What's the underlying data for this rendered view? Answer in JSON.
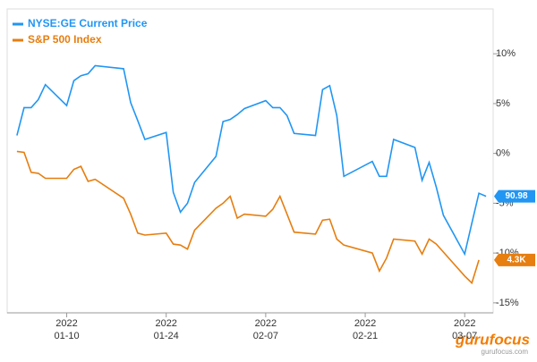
{
  "chart_data": {
    "type": "line",
    "x": [
      "2022-01-03",
      "2022-01-04",
      "2022-01-05",
      "2022-01-06",
      "2022-01-07",
      "2022-01-10",
      "2022-01-11",
      "2022-01-12",
      "2022-01-13",
      "2022-01-14",
      "2022-01-18",
      "2022-01-19",
      "2022-01-20",
      "2022-01-21",
      "2022-01-24",
      "2022-01-25",
      "2022-01-26",
      "2022-01-27",
      "2022-01-28",
      "2022-01-31",
      "2022-02-01",
      "2022-02-02",
      "2022-02-03",
      "2022-02-04",
      "2022-02-07",
      "2022-02-08",
      "2022-02-09",
      "2022-02-10",
      "2022-02-11",
      "2022-02-14",
      "2022-02-15",
      "2022-02-16",
      "2022-02-17",
      "2022-02-18",
      "2022-02-22",
      "2022-02-23",
      "2022-02-24",
      "2022-02-25",
      "2022-02-28",
      "2022-03-01",
      "2022-03-02",
      "2022-03-03",
      "2022-03-04",
      "2022-03-07",
      "2022-03-08",
      "2022-03-09",
      "2022-03-10"
    ],
    "series": [
      {
        "name": "NYSE:GE Current Price",
        "color": "#2196f3",
        "end_label": "90.98",
        "values": [
          1.8,
          4.6,
          4.6,
          5.4,
          6.9,
          4.8,
          7.3,
          7.8,
          8.0,
          8.8,
          8.5,
          5.1,
          3.3,
          1.4,
          2.1,
          -3.9,
          -5.9,
          -5.0,
          -2.9,
          -0.3,
          3.2,
          3.4,
          3.9,
          4.5,
          5.3,
          4.6,
          4.6,
          3.8,
          2.0,
          1.8,
          6.4,
          6.8,
          3.8,
          -2.3,
          -0.8,
          -2.3,
          -2.3,
          1.4,
          0.6,
          -2.7,
          -0.9,
          -3.4,
          -6.2,
          -10.1,
          -7.0,
          -4.0,
          -4.3
        ]
      },
      {
        "name": "S&P 500 Index",
        "color": "#e67e10",
        "end_label": "4.3K",
        "values": [
          0.2,
          0.1,
          -1.9,
          -2.0,
          -2.5,
          -2.5,
          -1.6,
          -1.3,
          -2.8,
          -2.6,
          -4.5,
          -6.1,
          -8.0,
          -8.2,
          -8.0,
          -9.1,
          -9.2,
          -9.6,
          -7.7,
          -5.5,
          -5.0,
          -4.3,
          -6.5,
          -6.1,
          -6.3,
          -5.6,
          -4.3,
          -6.1,
          -7.9,
          -8.1,
          -6.7,
          -6.6,
          -8.6,
          -9.2,
          -10.0,
          -11.8,
          -10.5,
          -8.6,
          -8.8,
          -10.1,
          -8.6,
          -9.1,
          -9.9,
          -12.3,
          -13.0,
          -10.7,
          null
        ]
      }
    ],
    "xlim": [
      "2022-01-02",
      "2022-03-11"
    ],
    "xticks": [
      {
        "value": "2022-01-10",
        "year": "2022",
        "label": "01-10"
      },
      {
        "value": "2022-01-24",
        "year": "2022",
        "label": "01-24"
      },
      {
        "value": "2022-02-07",
        "year": "2022",
        "label": "02-07"
      },
      {
        "value": "2022-02-21",
        "year": "2022",
        "label": "02-21"
      },
      {
        "value": "2022-03-07",
        "year": "2022",
        "label": "03-07"
      }
    ],
    "ylim": [
      -16,
      14.5
    ],
    "yticks": [
      {
        "value": 10,
        "label": "10%"
      },
      {
        "value": 5,
        "label": "5%"
      },
      {
        "value": 0,
        "label": "0%"
      },
      {
        "value": -5,
        "label": "-5%"
      },
      {
        "value": -10,
        "label": "-10%"
      },
      {
        "value": -15,
        "label": "-15%"
      }
    ],
    "legend": "top-left",
    "watermark": "gurufocus",
    "watermark_sub": "gurufocus.com"
  }
}
